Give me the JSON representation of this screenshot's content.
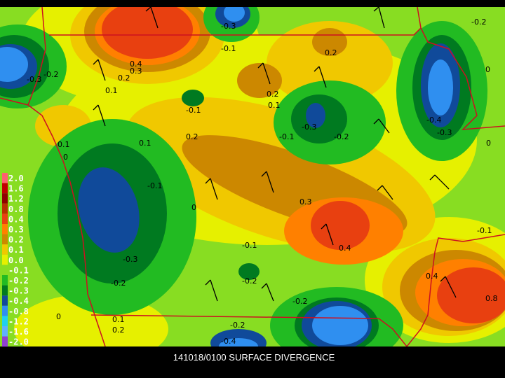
{
  "caption": "141018/0100 SURFACE DIVERGENCE",
  "colorbar": {
    "labels": [
      "2.0",
      "1.6",
      "1.2",
      "0.8",
      "0.4",
      "0.3",
      "0.2",
      "0.1",
      "0.0",
      "-0.1",
      "-0.2",
      "-0.3",
      "-0.4",
      "-0.8",
      "-1.2",
      "-1.6",
      "-2.0"
    ],
    "colors": [
      "#ff6070",
      "#c00000",
      "#900000",
      "#b83000",
      "#e84010",
      "#ff8000",
      "#cc8800",
      "#f0c800",
      "#e6f000",
      "#88dd22",
      "#22bb22",
      "#007a20",
      "#104a9a",
      "#2f8ff0",
      "#20d0f0",
      "#60b0ff",
      "#9040d0"
    ]
  },
  "contour_labels": [
    "0.4",
    "0.3",
    "0.2",
    "0.1",
    "-0.3",
    "-0.2",
    "0.1",
    "0",
    "0.1",
    "0.2",
    "-0.1",
    "0.2",
    "0.2",
    "0.1",
    "-0.1",
    "-0.3",
    "-0.2",
    "-0.4",
    "-0.3",
    "0",
    "-0.2",
    "-0.1",
    "0",
    "0.3",
    "0.4",
    "-0.1",
    "-0.3",
    "-0.2",
    "-0.2",
    "-0.2",
    "0.4",
    "0.8",
    "-0.1",
    "0",
    "0.1",
    "0.2",
    "-0.2",
    "-0.4",
    "-0.3",
    "-0.1",
    "0"
  ]
}
